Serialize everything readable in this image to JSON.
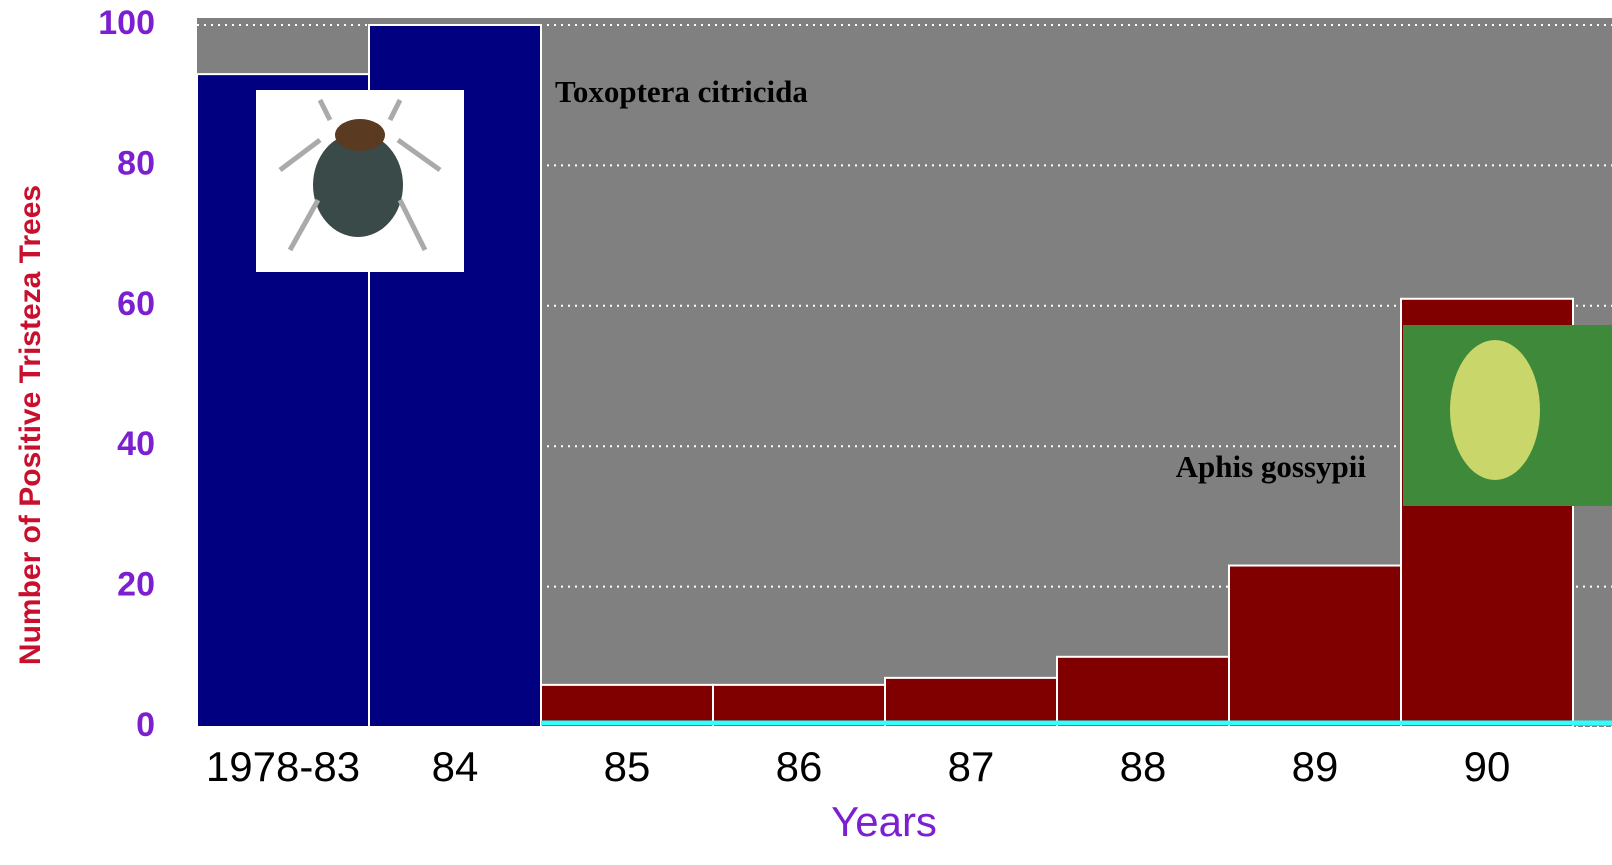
{
  "chart_data": {
    "type": "bar",
    "y_label": "Number of Positive Tristeza Trees",
    "x_label": "Years",
    "categories": [
      "1978-83",
      "84",
      "85",
      "86",
      "87",
      "88",
      "89",
      "90"
    ],
    "series": [
      {
        "name": "Toxoptera citricida",
        "color": "#000080",
        "values": [
          93,
          100,
          null,
          null,
          null,
          null,
          null,
          null
        ]
      },
      {
        "name": "Aphis gossypii",
        "color": "#800000",
        "values": [
          null,
          null,
          6,
          6,
          7,
          10,
          23,
          61
        ]
      }
    ],
    "ylim": [
      0,
      100
    ],
    "yticks": [
      0,
      20,
      40,
      60,
      80,
      100
    ],
    "grid": true
  }
}
